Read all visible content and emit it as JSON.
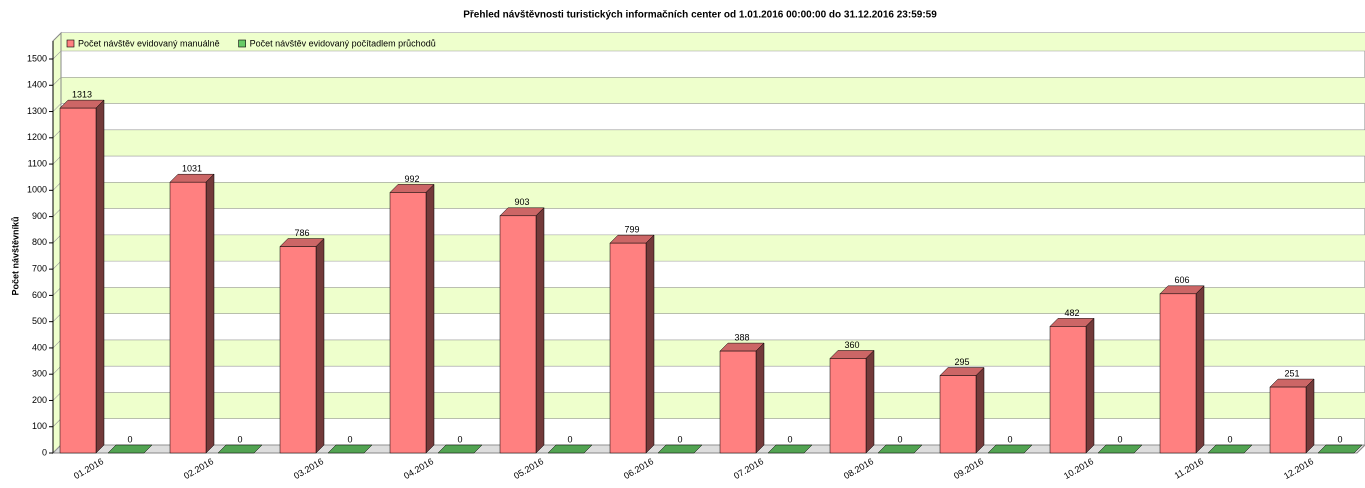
{
  "chart_data": {
    "type": "bar3d",
    "title": "Přehled návštěvnosti turistických informačních center od 1.01.2016 00:00:00 do 31.12.2016 23:59:59",
    "y_label": "Počet návštěvníků",
    "categories": [
      "01.2016",
      "02.2016",
      "03.2016",
      "04.2016",
      "05.2016",
      "06.2016",
      "07.2016",
      "08.2016",
      "09.2016",
      "10.2016",
      "11.2016",
      "12.2016"
    ],
    "series": [
      {
        "name": "Počet návštěv evidovaný manuálně",
        "color": "#ff8080",
        "values": [
          1313,
          1031,
          786,
          992,
          903,
          799,
          388,
          360,
          295,
          482,
          606,
          251
        ]
      },
      {
        "name": "Počet návštěv evidovaný počítadlem průchodů",
        "color": "#66cc66",
        "values": [
          0,
          0,
          0,
          0,
          0,
          0,
          0,
          0,
          0,
          0,
          0,
          0
        ]
      }
    ],
    "ylim": [
      0,
      1500
    ],
    "yticks": [
      0,
      100,
      200,
      300,
      400,
      500,
      600,
      700,
      800,
      900,
      1000,
      1100,
      1200,
      1300,
      1400,
      1500
    ],
    "grid": true,
    "legend": "top"
  }
}
